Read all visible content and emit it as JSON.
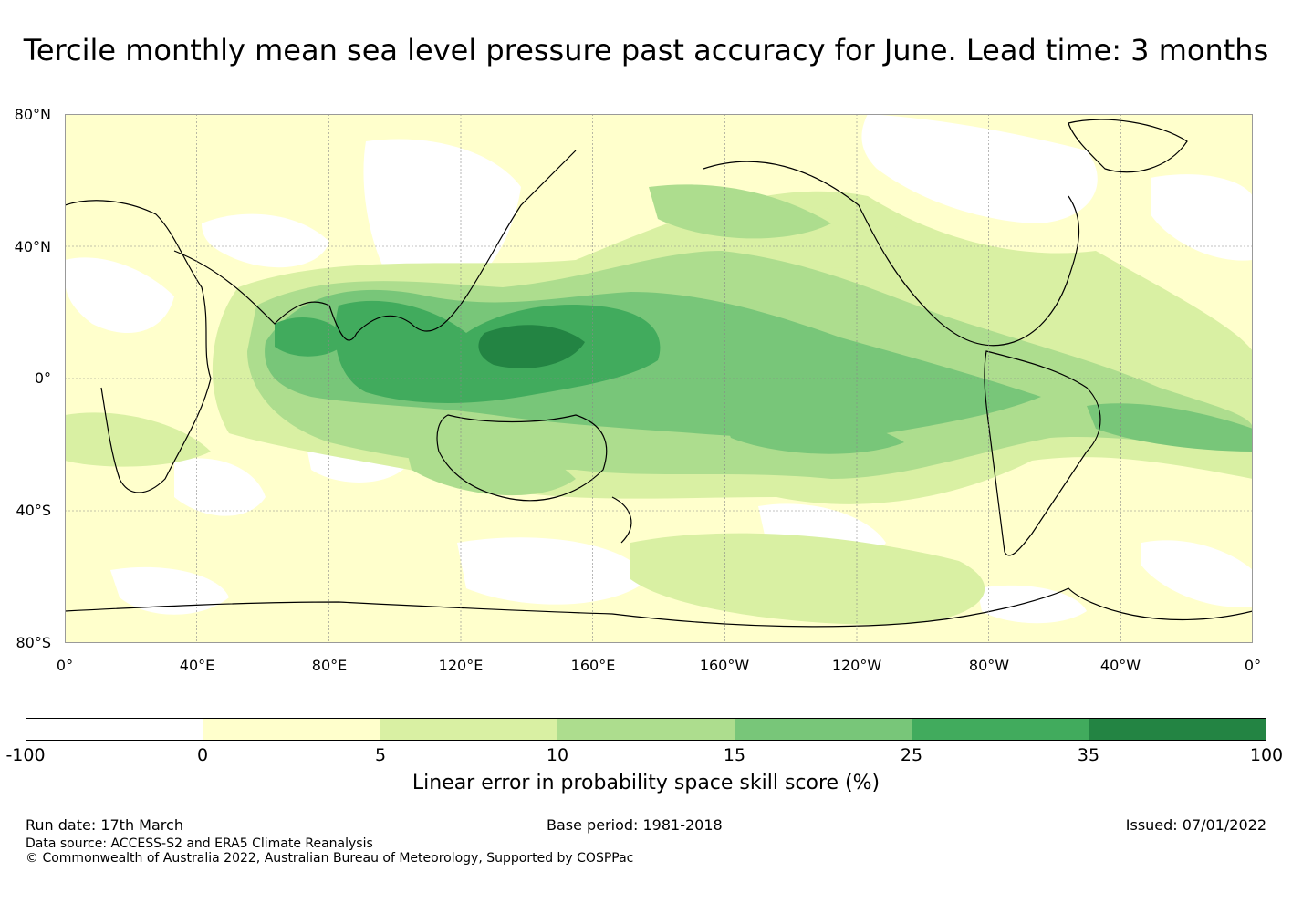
{
  "title": "Tercile monthly mean sea level pressure past accuracy for June. Lead time: 3 months",
  "map": {
    "lat_labels": [
      "80°N",
      "40°N",
      "0°",
      "40°S",
      "80°S"
    ],
    "lon_labels": [
      "0°",
      "40°E",
      "80°E",
      "120°E",
      "160°E",
      "160°W",
      "120°W",
      "80°W",
      "40°W",
      "0°"
    ]
  },
  "colorbar": {
    "ticks": [
      "-100",
      "0",
      "5",
      "10",
      "15",
      "25",
      "35",
      "100"
    ],
    "colors": [
      "#ffffff",
      "#ffffcc",
      "#d9f0a3",
      "#addd8e",
      "#78c679",
      "#41ab5d",
      "#238443"
    ],
    "label": "Linear error in probability space skill score (%)"
  },
  "footer": {
    "run_date": "Run date: 17th March",
    "base_period": "Base period: 1981-2018",
    "issued": "Issued: 07/01/2022",
    "data_source": "Data source: ACCESS-S2 and ERA5 Climate Reanalysis",
    "copyright": "© Commonwealth of Australia 2022, Australian Bureau of Meteorology, Supported by COSPPac"
  }
}
